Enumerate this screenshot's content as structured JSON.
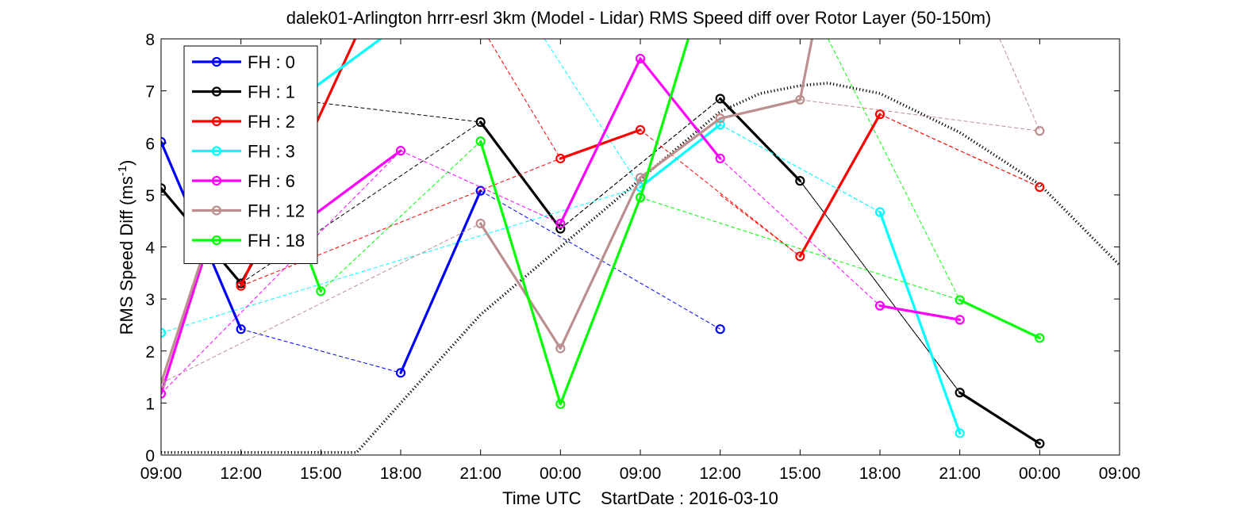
{
  "chart_data": {
    "type": "line",
    "title": "dalek01-Arlington hrrr-esrl 3km (Model - Lidar) RMS Speed diff over Rotor Layer (50-150m)",
    "xlabel": "Time UTC    StartDate : 2016-03-10",
    "ylabel": "RMS Speed Diff (ms",
    "ylabel_sup": "-1",
    "ylabel_close": ")",
    "x_tick_labels": [
      "09:00",
      "12:00",
      "15:00",
      "18:00",
      "21:00",
      "00:00",
      "09:00",
      "12:00",
      "15:00",
      "18:00",
      "21:00",
      "00:00",
      "09:00"
    ],
    "y_ticks": [
      0,
      1,
      2,
      3,
      4,
      5,
      6,
      7,
      8
    ],
    "ylim": [
      0,
      8
    ],
    "legend_placement": "top-left",
    "series": [
      {
        "name": "FH : 0",
        "color": "#0000ff",
        "x": [
          0,
          1,
          3,
          4,
          7
        ],
        "y": [
          6.02,
          2.42,
          1.58,
          5.08,
          2.42
        ],
        "solid_segments": [
          [
            0,
            1
          ],
          [
            2,
            3
          ]
        ]
      },
      {
        "name": "FH : 1",
        "color": "#000000",
        "x": [
          0,
          1,
          4,
          5,
          7,
          8,
          10,
          11
        ],
        "y": [
          5.13,
          3.3,
          6.4,
          4.35,
          6.85,
          5.27,
          1.2,
          0.22
        ],
        "extra_solid": [
          {
            "from": [
              1,
              3.3
            ],
            "to": [
              1.4,
              4.4
            ]
          }
        ],
        "solid_segments": [
          [
            0,
            1
          ],
          [
            2,
            3
          ],
          [
            4,
            5
          ],
          [
            6,
            7
          ]
        ]
      },
      {
        "name": "FH : 2",
        "color": "#ff0000",
        "x": [
          1,
          5,
          6,
          8,
          9,
          11
        ],
        "y": [
          3.25,
          5.7,
          6.25,
          3.82,
          6.55,
          5.15
        ],
        "extra_solid": [
          {
            "from": [
              1,
              3.25
            ],
            "to": [
              2.43,
              8.0
            ]
          }
        ],
        "solid_segments": [
          [
            1,
            2
          ],
          [
            3,
            4
          ]
        ]
      },
      {
        "name": "FH : 3",
        "color": "#00ffff",
        "x": [
          0,
          6,
          7,
          9,
          10
        ],
        "y": [
          2.35,
          5.15,
          6.35,
          4.67,
          0.42
        ],
        "extra_solid": [
          {
            "from": [
              1.95,
              7.1
            ],
            "to": [
              2.75,
              8.0
            ]
          }
        ],
        "solid_segments": [
          [
            1,
            2
          ],
          [
            3,
            4
          ]
        ]
      },
      {
        "name": "FH : 6",
        "color": "#ff00ff",
        "x": [
          0,
          3,
          5,
          6,
          7,
          9,
          10
        ],
        "y": [
          1.18,
          5.85,
          4.45,
          7.62,
          5.7,
          2.87,
          2.6
        ],
        "extra_solid": [
          {
            "from": [
              0,
              1.18
            ],
            "to": [
              0.6,
              4.1
            ]
          },
          {
            "from": [
              1.9,
              4.6
            ],
            "to": [
              3,
              5.85
            ]
          }
        ],
        "solid_segments": [
          [
            2,
            3
          ],
          [
            3,
            4
          ],
          [
            5,
            6
          ]
        ]
      },
      {
        "name": "FH : 12",
        "color": "#bc8f8f",
        "x": [
          0,
          4,
          5,
          6,
          7,
          8,
          11
        ],
        "y": [
          1.38,
          4.45,
          2.05,
          5.33,
          6.47,
          6.83,
          6.23
        ],
        "extra_solid": [
          {
            "from": [
              0,
              1.38
            ],
            "to": [
              0.6,
              4.2
            ]
          },
          {
            "from": [
              8,
              6.83
            ],
            "to": [
              8.15,
              8.0
            ]
          }
        ],
        "solid_segments": [
          [
            1,
            2
          ],
          [
            2,
            3
          ],
          [
            3,
            4
          ],
          [
            4,
            5
          ]
        ]
      },
      {
        "name": "FH : 18",
        "color": "#00ff00",
        "x": [
          2,
          4,
          5,
          6,
          10,
          11
        ],
        "y": [
          3.15,
          6.03,
          0.98,
          4.95,
          2.98,
          2.25
        ],
        "extra_solid": [
          {
            "from": [
              2,
              3.15
            ],
            "to": [
              1.72,
              4.3
            ]
          },
          {
            "from": [
              6,
              4.95
            ],
            "to": [
              6.6,
              8.0
            ]
          }
        ],
        "solid_segments": [
          [
            1,
            2
          ],
          [
            2,
            3
          ],
          [
            4,
            5
          ]
        ]
      }
    ],
    "reference_curves": [
      {
        "style": "dashed",
        "color": "#000000",
        "points": [
          [
            1.55,
            6.85
          ],
          [
            4,
            6.4
          ],
          [
            5,
            4.35
          ],
          [
            7,
            6.85
          ],
          [
            8,
            5.27
          ],
          [
            10,
            1.2
          ],
          [
            11,
            0.22
          ]
        ]
      },
      {
        "style": "dotted-thick",
        "color": "#000000",
        "points": [
          [
            0,
            0.05
          ],
          [
            2.45,
            0.05
          ],
          [
            3,
            1.0
          ],
          [
            4,
            2.7
          ],
          [
            5,
            4.0
          ],
          [
            6,
            5.3
          ],
          [
            7,
            6.6
          ],
          [
            7.5,
            6.95
          ],
          [
            8,
            7.1
          ],
          [
            8.35,
            7.15
          ],
          [
            9,
            6.95
          ],
          [
            10,
            6.2
          ],
          [
            11,
            5.2
          ],
          [
            12,
            3.65
          ]
        ]
      },
      {
        "style": "dashed",
        "color": "#ff0000",
        "points": [
          [
            4.1,
            8.0
          ],
          [
            5,
            5.7
          ]
        ]
      },
      {
        "style": "dashed",
        "color": "#ff0000",
        "points": [
          [
            7,
            5.0
          ],
          [
            8,
            3.82
          ]
        ]
      },
      {
        "style": "dashed",
        "color": "#ff0000",
        "points": [
          [
            9,
            6.55
          ],
          [
            11,
            5.15
          ]
        ]
      },
      {
        "style": "dashed",
        "color": "#00ffff",
        "points": [
          [
            4.8,
            8.0
          ],
          [
            6,
            5.15
          ]
        ]
      },
      {
        "style": "dashed",
        "color": "#00ffff",
        "points": [
          [
            7,
            6.35
          ],
          [
            9,
            4.67
          ]
        ]
      },
      {
        "style": "dashed",
        "color": "#00ff00",
        "points": [
          [
            8.35,
            8.0
          ],
          [
            10,
            2.98
          ]
        ]
      },
      {
        "style": "dashed",
        "color": "#bc8f8f",
        "points": [
          [
            10.5,
            8.0
          ],
          [
            11,
            6.23
          ]
        ]
      }
    ]
  }
}
